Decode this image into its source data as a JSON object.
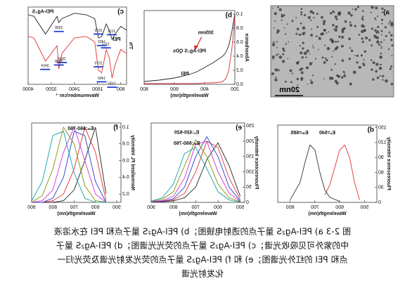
{
  "panel_a": {
    "label": "a)",
    "scale_bar": "20nm"
  },
  "chart_data": [
    {
      "type": "line",
      "panel_label": "b)",
      "x_label": "Wavelength(nm)",
      "y_label": "Absorbance",
      "x": [
        200,
        220,
        240,
        260,
        280,
        300,
        350,
        400,
        450,
        500,
        600,
        700,
        800
      ],
      "series": [
        {
          "name": "PEI-Ag₂S QDs",
          "color": "#222222",
          "values": [
            1.0,
            0.75,
            0.55,
            0.45,
            0.4,
            0.37,
            0.3,
            0.24,
            0.18,
            0.14,
            0.09,
            0.06,
            0.04
          ]
        },
        {
          "name": "PEI",
          "color": "#e03030",
          "values": [
            0.95,
            0.5,
            0.2,
            0.08,
            0.04,
            0.03,
            0.02,
            0.02,
            0.01,
            0.01,
            0.01,
            0.01,
            0.01
          ]
        }
      ],
      "annotations": [
        "305nm"
      ],
      "xlim": [
        200,
        800
      ],
      "xticks": [
        200,
        400,
        600,
        800
      ],
      "ylim": [
        0,
        1.05
      ],
      "yticks": [
        {
          "value": 0,
          "label": "0.0"
        },
        0.2,
        0.4,
        0.6,
        0.8,
        {
          "value": 1,
          "label": "1.0"
        }
      ]
    },
    {
      "type": "line",
      "panel_label": "c)",
      "x_label": "Wavenumber/cm⁻¹",
      "y_label": "T%",
      "x": [
        600,
        800,
        1000,
        1100,
        1200,
        1300,
        1460,
        1570,
        1700,
        2000,
        2400,
        2830,
        2940,
        3000,
        3400,
        3800,
        4000
      ],
      "series": [
        {
          "name": "PEI-Ag₂S",
          "color": "#222222",
          "values": [
            70,
            75,
            65,
            58,
            70,
            78,
            62,
            60,
            85,
            90,
            92,
            85,
            80,
            88,
            65,
            88,
            90
          ],
          "peaks": [
            1113,
            1462,
            1572,
            2938
          ]
        },
        {
          "name": "PEI",
          "color": "#e03030",
          "values": [
            40,
            45,
            25,
            8,
            35,
            45,
            15,
            18,
            55,
            62,
            60,
            40,
            20,
            50,
            30,
            60,
            62
          ],
          "peaks": [
            1100,
            1313,
            1460,
            1570,
            2830,
            2938,
            3414
          ]
        }
      ],
      "xlim": [
        600,
        4000
      ],
      "xticks": [
        800,
        1600,
        2400,
        3200,
        4000
      ],
      "ylim": [
        0,
        100
      ]
    },
    {
      "type": "line",
      "panel_label": "d)",
      "x_label": "Wavelength(nm)",
      "y_label": "Fluorescence Intensity",
      "series": [
        {
          "color": "#e03030",
          "x": [
            520,
            540,
            560,
            580,
            600,
            620,
            640,
            660
          ],
          "values": [
            5,
            40,
            90,
            115,
            105,
            70,
            35,
            15
          ]
        },
        {
          "color": "#333333",
          "x": [
            600,
            640,
            660,
            680,
            700,
            720,
            740,
            760,
            800
          ],
          "values": [
            2,
            10,
            25,
            60,
            105,
            115,
            80,
            40,
            5
          ]
        }
      ],
      "annotations": [
        "Eₓ=540",
        "Eₘ=685"
      ],
      "xlim": [
        450,
        850
      ],
      "xticks": [
        500,
        600,
        700,
        800
      ],
      "ylim": [
        0,
        155
      ],
      "yticks": [
        0,
        30,
        60,
        90,
        120,
        150
      ]
    },
    {
      "type": "line",
      "panel_label": "e)",
      "x_label": "Wavelength(nm)",
      "y_label": "Fluorescence Intensity",
      "x": [
        500,
        550,
        600,
        650,
        700,
        750,
        800,
        850,
        900
      ],
      "series": [
        {
          "color": "#222222",
          "values": [
            20,
            120,
            195,
            140,
            50,
            15,
            5,
            2,
            1
          ]
        },
        {
          "color": "#e03030",
          "values": [
            10,
            80,
            180,
            200,
            100,
            30,
            8,
            3,
            1
          ]
        },
        {
          "color": "#2040d0",
          "values": [
            5,
            50,
            150,
            215,
            150,
            50,
            12,
            4,
            1
          ]
        },
        {
          "color": "#d030d0",
          "values": [
            3,
            30,
            100,
            200,
            190,
            80,
            20,
            6,
            2
          ]
        },
        {
          "color": "#809000",
          "values": [
            2,
            15,
            60,
            150,
            205,
            120,
            35,
            10,
            3
          ]
        },
        {
          "color": "#10a0a0",
          "values": [
            1,
            8,
            35,
            110,
            180,
            160,
            60,
            15,
            4
          ]
        }
      ],
      "annotations": [
        "Eₓ:420-620",
        "Eₘ:660-760"
      ],
      "xlim": [
        480,
        900
      ],
      "xticks": [
        500,
        600,
        700,
        800,
        900
      ],
      "ylim": [
        0,
        260
      ],
      "yticks": [
        0,
        50,
        100,
        150,
        200,
        250
      ]
    },
    {
      "type": "line",
      "panel_label": "f)",
      "x_label": "Wavelength(nm)",
      "y_label": "Normalized FL Intensity",
      "x": [
        550,
        600,
        650,
        700,
        750,
        800,
        850,
        900
      ],
      "series": [
        {
          "color": "#222222",
          "values": [
            0.2,
            1.0,
            0.6,
            0.25,
            0.12,
            0.1,
            0.1,
            0.1
          ]
        },
        {
          "color": "#e03030",
          "values": [
            0.12,
            0.7,
            1.0,
            0.5,
            0.2,
            0.12,
            0.1,
            0.1
          ]
        },
        {
          "color": "#2040d0",
          "values": [
            0.1,
            0.35,
            0.9,
            0.95,
            0.4,
            0.15,
            0.1,
            0.1
          ]
        },
        {
          "color": "#d030d0",
          "values": [
            0.1,
            0.2,
            0.6,
            1.0,
            0.7,
            0.25,
            0.12,
            0.1
          ]
        },
        {
          "color": "#809000",
          "values": [
            0.1,
            0.12,
            0.3,
            0.8,
            1.0,
            0.5,
            0.18,
            0.1
          ]
        },
        {
          "color": "#10a0a0",
          "values": [
            0.1,
            0.1,
            0.15,
            0.45,
            0.95,
            0.9,
            0.35,
            0.12
          ]
        }
      ],
      "annotations": [
        "Eₘ:660-760"
      ],
      "xlim": [
        480,
        900
      ],
      "xticks": [
        500,
        600,
        700,
        800,
        900
      ],
      "ylim": [
        0.1,
        1.05
      ],
      "yticks": [
        0.2,
        0.4,
        0.6,
        0.8,
        {
          "value": 1,
          "label": "1.0"
        }
      ]
    }
  ],
  "caption": [
    "图 2-3 a) PEI-Ag₂S 量子点的透射电镜图；b) PEI-Ag₂S 量子点和 PEI 在水溶液",
    "中的紫外可见吸收光谱；c) PEI-Ag₂S 量子点的荧光光谱图；d) PEI-Ag₂S 量子",
    "点和 PEI 的红外光谱图；e) 和 f) PEI-Ag₂S 量子点的荧光发射光谱及荧光归一",
    "化发射光谱"
  ]
}
